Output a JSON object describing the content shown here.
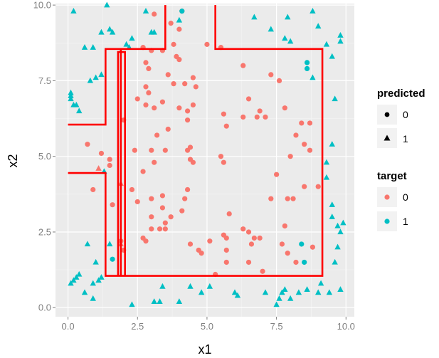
{
  "chart_data": {
    "type": "scatter",
    "xlabel": "x1",
    "ylabel": "x2",
    "xlim": [
      -0.45,
      10.3
    ],
    "ylim": [
      -0.3,
      10.05
    ],
    "x_ticks": [
      0.0,
      2.5,
      5.0,
      7.5,
      10.0
    ],
    "x_tick_labels": [
      "0.0",
      "2.5",
      "5.0",
      "7.5",
      "10.0"
    ],
    "y_ticks": [
      0.0,
      2.5,
      5.0,
      7.5,
      10.0
    ],
    "y_tick_labels": [
      "0.0",
      "2.5",
      "5.0",
      "7.5",
      "10.0"
    ],
    "grid": true,
    "panel_background": "#EBEBEB",
    "legend_placement": "right",
    "legends": [
      {
        "title": "predicted",
        "kind": "shape",
        "entries": [
          {
            "label": "0",
            "shape": "circle"
          },
          {
            "label": "1",
            "shape": "triangle"
          }
        ]
      },
      {
        "title": "target",
        "kind": "color",
        "entries": [
          {
            "label": "0",
            "color": "#F8766D"
          },
          {
            "label": "1",
            "color": "#00BFC4"
          }
        ]
      }
    ],
    "boundary_color": "#FF0000",
    "decision_boundary": [
      [
        [
          3.5,
          10.0
        ],
        [
          3.5,
          8.55
        ],
        [
          1.35,
          8.55
        ],
        [
          1.35,
          6.05
        ],
        [
          0.0,
          6.05
        ]
      ],
      [
        [
          5.3,
          10.0
        ],
        [
          5.3,
          8.55
        ],
        [
          9.15,
          8.55
        ],
        [
          9.15,
          1.05
        ],
        [
          1.35,
          1.05
        ],
        [
          1.35,
          4.45
        ],
        [
          0.0,
          4.45
        ]
      ],
      [
        [
          1.9,
          1.05
        ],
        [
          1.9,
          8.55
        ]
      ],
      [
        [
          1.8,
          1.05
        ],
        [
          1.8,
          8.45
        ],
        [
          2.05,
          8.45
        ],
        [
          2.05,
          1.05
        ]
      ]
    ],
    "series": [
      {
        "predicted": "0",
        "target": "0",
        "points": [
          [
            3.1,
            9.7
          ],
          [
            3.7,
            9.4
          ],
          [
            4.0,
            9.2
          ],
          [
            4.1,
            9.8
          ],
          [
            2.7,
            8.6
          ],
          [
            3.0,
            8.5
          ],
          [
            3.4,
            8.5
          ],
          [
            3.8,
            8.7
          ],
          [
            3.9,
            8.3
          ],
          [
            4.0,
            8.2
          ],
          [
            5.0,
            8.7
          ],
          [
            5.5,
            8.6
          ],
          [
            2.8,
            8.1
          ],
          [
            2.9,
            7.9
          ],
          [
            2.8,
            7.3
          ],
          [
            2.9,
            7.1
          ],
          [
            3.6,
            7.7
          ],
          [
            3.8,
            7.4
          ],
          [
            4.2,
            7.4
          ],
          [
            4.5,
            7.6
          ],
          [
            4.6,
            7.3
          ],
          [
            6.3,
            8.0
          ],
          [
            7.3,
            7.7
          ],
          [
            7.6,
            7.5
          ],
          [
            2.5,
            6.9
          ],
          [
            2.8,
            6.7
          ],
          [
            3.1,
            6.6
          ],
          [
            3.4,
            6.8
          ],
          [
            4.0,
            6.6
          ],
          [
            4.3,
            6.5
          ],
          [
            4.5,
            6.7
          ],
          [
            4.3,
            6.2
          ],
          [
            2.0,
            6.2
          ],
          [
            3.6,
            5.9
          ],
          [
            3.2,
            5.7
          ],
          [
            5.6,
            6.4
          ],
          [
            5.7,
            6.0
          ],
          [
            6.3,
            6.3
          ],
          [
            6.5,
            6.9
          ],
          [
            6.8,
            6.3
          ],
          [
            6.9,
            6.5
          ],
          [
            7.1,
            6.3
          ],
          [
            7.8,
            6.6
          ],
          [
            8.4,
            6.1
          ],
          [
            8.7,
            6.1
          ],
          [
            8.2,
            5.7
          ],
          [
            8.5,
            5.4
          ],
          [
            8.7,
            5.2
          ],
          [
            8.0,
            5.0
          ],
          [
            0.7,
            5.4
          ],
          [
            1.2,
            5.1
          ],
          [
            1.5,
            4.9
          ],
          [
            1.5,
            4.7
          ],
          [
            2.4,
            5.2
          ],
          [
            3.0,
            5.2
          ],
          [
            3.5,
            5.2
          ],
          [
            4.3,
            5.2
          ],
          [
            4.4,
            4.9
          ],
          [
            4.5,
            4.8
          ],
          [
            4.4,
            5.3
          ],
          [
            3.1,
            4.8
          ],
          [
            5.5,
            5.0
          ],
          [
            5.6,
            4.8
          ],
          [
            2.7,
            4.5
          ],
          [
            7.5,
            4.4
          ],
          [
            7.3,
            3.6
          ],
          [
            7.9,
            3.6
          ],
          [
            8.5,
            4.0
          ],
          [
            9.0,
            4.0
          ],
          [
            0.9,
            3.9
          ],
          [
            1.6,
            3.4
          ],
          [
            2.3,
            3.9
          ],
          [
            2.5,
            3.5
          ],
          [
            3.0,
            3.6
          ],
          [
            3.4,
            3.7
          ],
          [
            3.4,
            3.3
          ],
          [
            4.3,
            3.9
          ],
          [
            4.2,
            3.6
          ],
          [
            4.1,
            3.2
          ],
          [
            3.7,
            3.0
          ],
          [
            3.0,
            3.0
          ],
          [
            3.0,
            2.6
          ],
          [
            3.3,
            2.6
          ],
          [
            3.5,
            2.8
          ],
          [
            3.5,
            2.6
          ],
          [
            5.8,
            3.1
          ],
          [
            8.1,
            3.6
          ],
          [
            2.7,
            2.3
          ],
          [
            2.8,
            2.2
          ],
          [
            4.4,
            2.1
          ],
          [
            4.7,
            1.9
          ],
          [
            4.8,
            1.8
          ],
          [
            5.1,
            2.2
          ],
          [
            5.6,
            2.4
          ],
          [
            5.7,
            2.3
          ],
          [
            5.7,
            1.9
          ],
          [
            5.7,
            1.5
          ],
          [
            5.3,
            1.1
          ],
          [
            6.3,
            2.6
          ],
          [
            6.5,
            2.5
          ],
          [
            6.7,
            2.3
          ],
          [
            6.6,
            2.1
          ],
          [
            6.9,
            2.3
          ],
          [
            6.5,
            1.5
          ],
          [
            7.0,
            1.2
          ],
          [
            7.7,
            2.1
          ],
          [
            7.8,
            2.7
          ],
          [
            7.9,
            1.8
          ],
          [
            8.2,
            1.5
          ],
          [
            8.8,
            2.0
          ],
          [
            1.9,
            2.2
          ],
          [
            2.0,
            1.9
          ]
        ]
      },
      {
        "predicted": "0",
        "target": "1",
        "points": [
          [
            4.1,
            9.8
          ],
          [
            8.6,
            8.1
          ],
          [
            8.6,
            7.9
          ],
          [
            8.4,
            2.1
          ],
          [
            8.5,
            1.5
          ],
          [
            1.6,
            1.6
          ]
        ]
      },
      {
        "predicted": "1",
        "target": "0",
        "points": [
          [
            1.1,
            4.6
          ],
          [
            1.9,
            4.1
          ],
          [
            1.9,
            2.1
          ]
        ]
      },
      {
        "predicted": "1",
        "target": "1",
        "points": [
          [
            0.2,
            9.8
          ],
          [
            2.8,
            9.8
          ],
          [
            1.4,
            10.0
          ],
          [
            1.5,
            9.2
          ],
          [
            1.6,
            9.1
          ],
          [
            3.0,
            9.1
          ],
          [
            3.1,
            9.1
          ],
          [
            4.0,
            9.5
          ],
          [
            6.7,
            9.6
          ],
          [
            7.9,
            9.6
          ],
          [
            8.8,
            9.8
          ],
          [
            9.0,
            9.3
          ],
          [
            7.3,
            9.2
          ],
          [
            0.9,
            8.6
          ],
          [
            1.2,
            9.1
          ],
          [
            2.2,
            8.6
          ],
          [
            2.1,
            8.7
          ],
          [
            2.3,
            8.9
          ],
          [
            0.6,
            8.6
          ],
          [
            7.8,
            8.9
          ],
          [
            8.0,
            8.8
          ],
          [
            9.3,
            8.7
          ],
          [
            9.8,
            9.0
          ],
          [
            9.8,
            8.8
          ],
          [
            9.5,
            8.3
          ],
          [
            1.2,
            7.7
          ],
          [
            0.8,
            7.5
          ],
          [
            1.0,
            7.6
          ],
          [
            8.8,
            7.6
          ],
          [
            0.1,
            7.1
          ],
          [
            0.1,
            6.9
          ],
          [
            0.1,
            7.0
          ],
          [
            0.3,
            6.7
          ],
          [
            0.4,
            6.5
          ],
          [
            0.2,
            6.7
          ],
          [
            9.6,
            6.9
          ],
          [
            9.5,
            5.4
          ],
          [
            1.3,
            4.5
          ],
          [
            9.3,
            4.8
          ],
          [
            9.3,
            4.3
          ],
          [
            9.5,
            3.4
          ],
          [
            9.5,
            3.0
          ],
          [
            9.7,
            2.7
          ],
          [
            9.8,
            2.5
          ],
          [
            9.9,
            2.8
          ],
          [
            9.7,
            2.0
          ],
          [
            0.7,
            2.1
          ],
          [
            1.5,
            2.1
          ],
          [
            1.0,
            1.5
          ],
          [
            9.6,
            1.5
          ],
          [
            0.4,
            1.1
          ],
          [
            0.3,
            1.0
          ],
          [
            0.2,
            0.9
          ],
          [
            0.1,
            0.8
          ],
          [
            0.9,
            0.8
          ],
          [
            1.1,
            0.9
          ],
          [
            1.2,
            1.0
          ],
          [
            2.3,
            0.1
          ],
          [
            3.1,
            0.2
          ],
          [
            3.3,
            0.2
          ],
          [
            3.4,
            0.7
          ],
          [
            4.0,
            0.2
          ],
          [
            4.4,
            0.7
          ],
          [
            6.0,
            0.5
          ],
          [
            6.1,
            0.4
          ],
          [
            7.1,
            0.5
          ],
          [
            7.7,
            0.5
          ],
          [
            7.8,
            0.6
          ],
          [
            7.6,
            0.3
          ],
          [
            7.5,
            0.1
          ],
          [
            8.0,
            0.3
          ],
          [
            8.3,
            0.5
          ],
          [
            8.6,
            0.6
          ],
          [
            9.0,
            0.5
          ],
          [
            9.1,
            0.8
          ],
          [
            9.4,
            0.5
          ],
          [
            9.8,
            0.6
          ],
          [
            0.9,
            0.3
          ],
          [
            0.6,
            0.5
          ],
          [
            4.8,
            0.5
          ],
          [
            5.1,
            0.7
          ]
        ]
      }
    ]
  }
}
